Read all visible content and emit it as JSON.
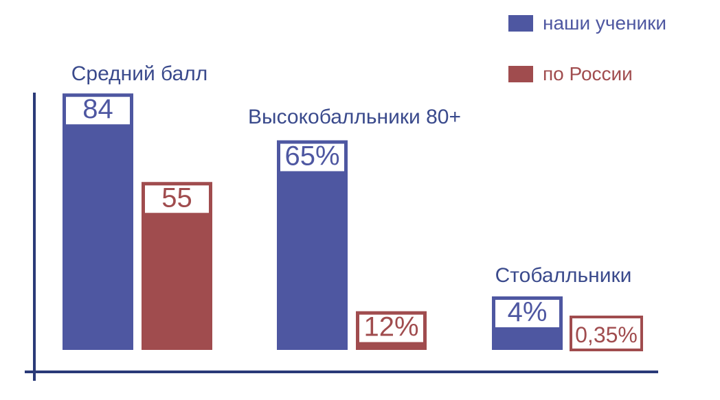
{
  "chart_data": {
    "type": "bar",
    "categories": [
      "Средний балл",
      "Высокобалльники 80+",
      "Стобалльники"
    ],
    "series": [
      {
        "name": "наши ученики",
        "color": "#4e57a1",
        "values": [
          84,
          65,
          4
        ],
        "labels": [
          "84",
          "65%",
          "4%"
        ]
      },
      {
        "name": "по России",
        "color": "#a04c4e",
        "values": [
          55,
          12,
          0.35
        ],
        "labels": [
          "55",
          "12%",
          "0,35%"
        ]
      }
    ],
    "legend_position": "top-right",
    "grid": false
  }
}
